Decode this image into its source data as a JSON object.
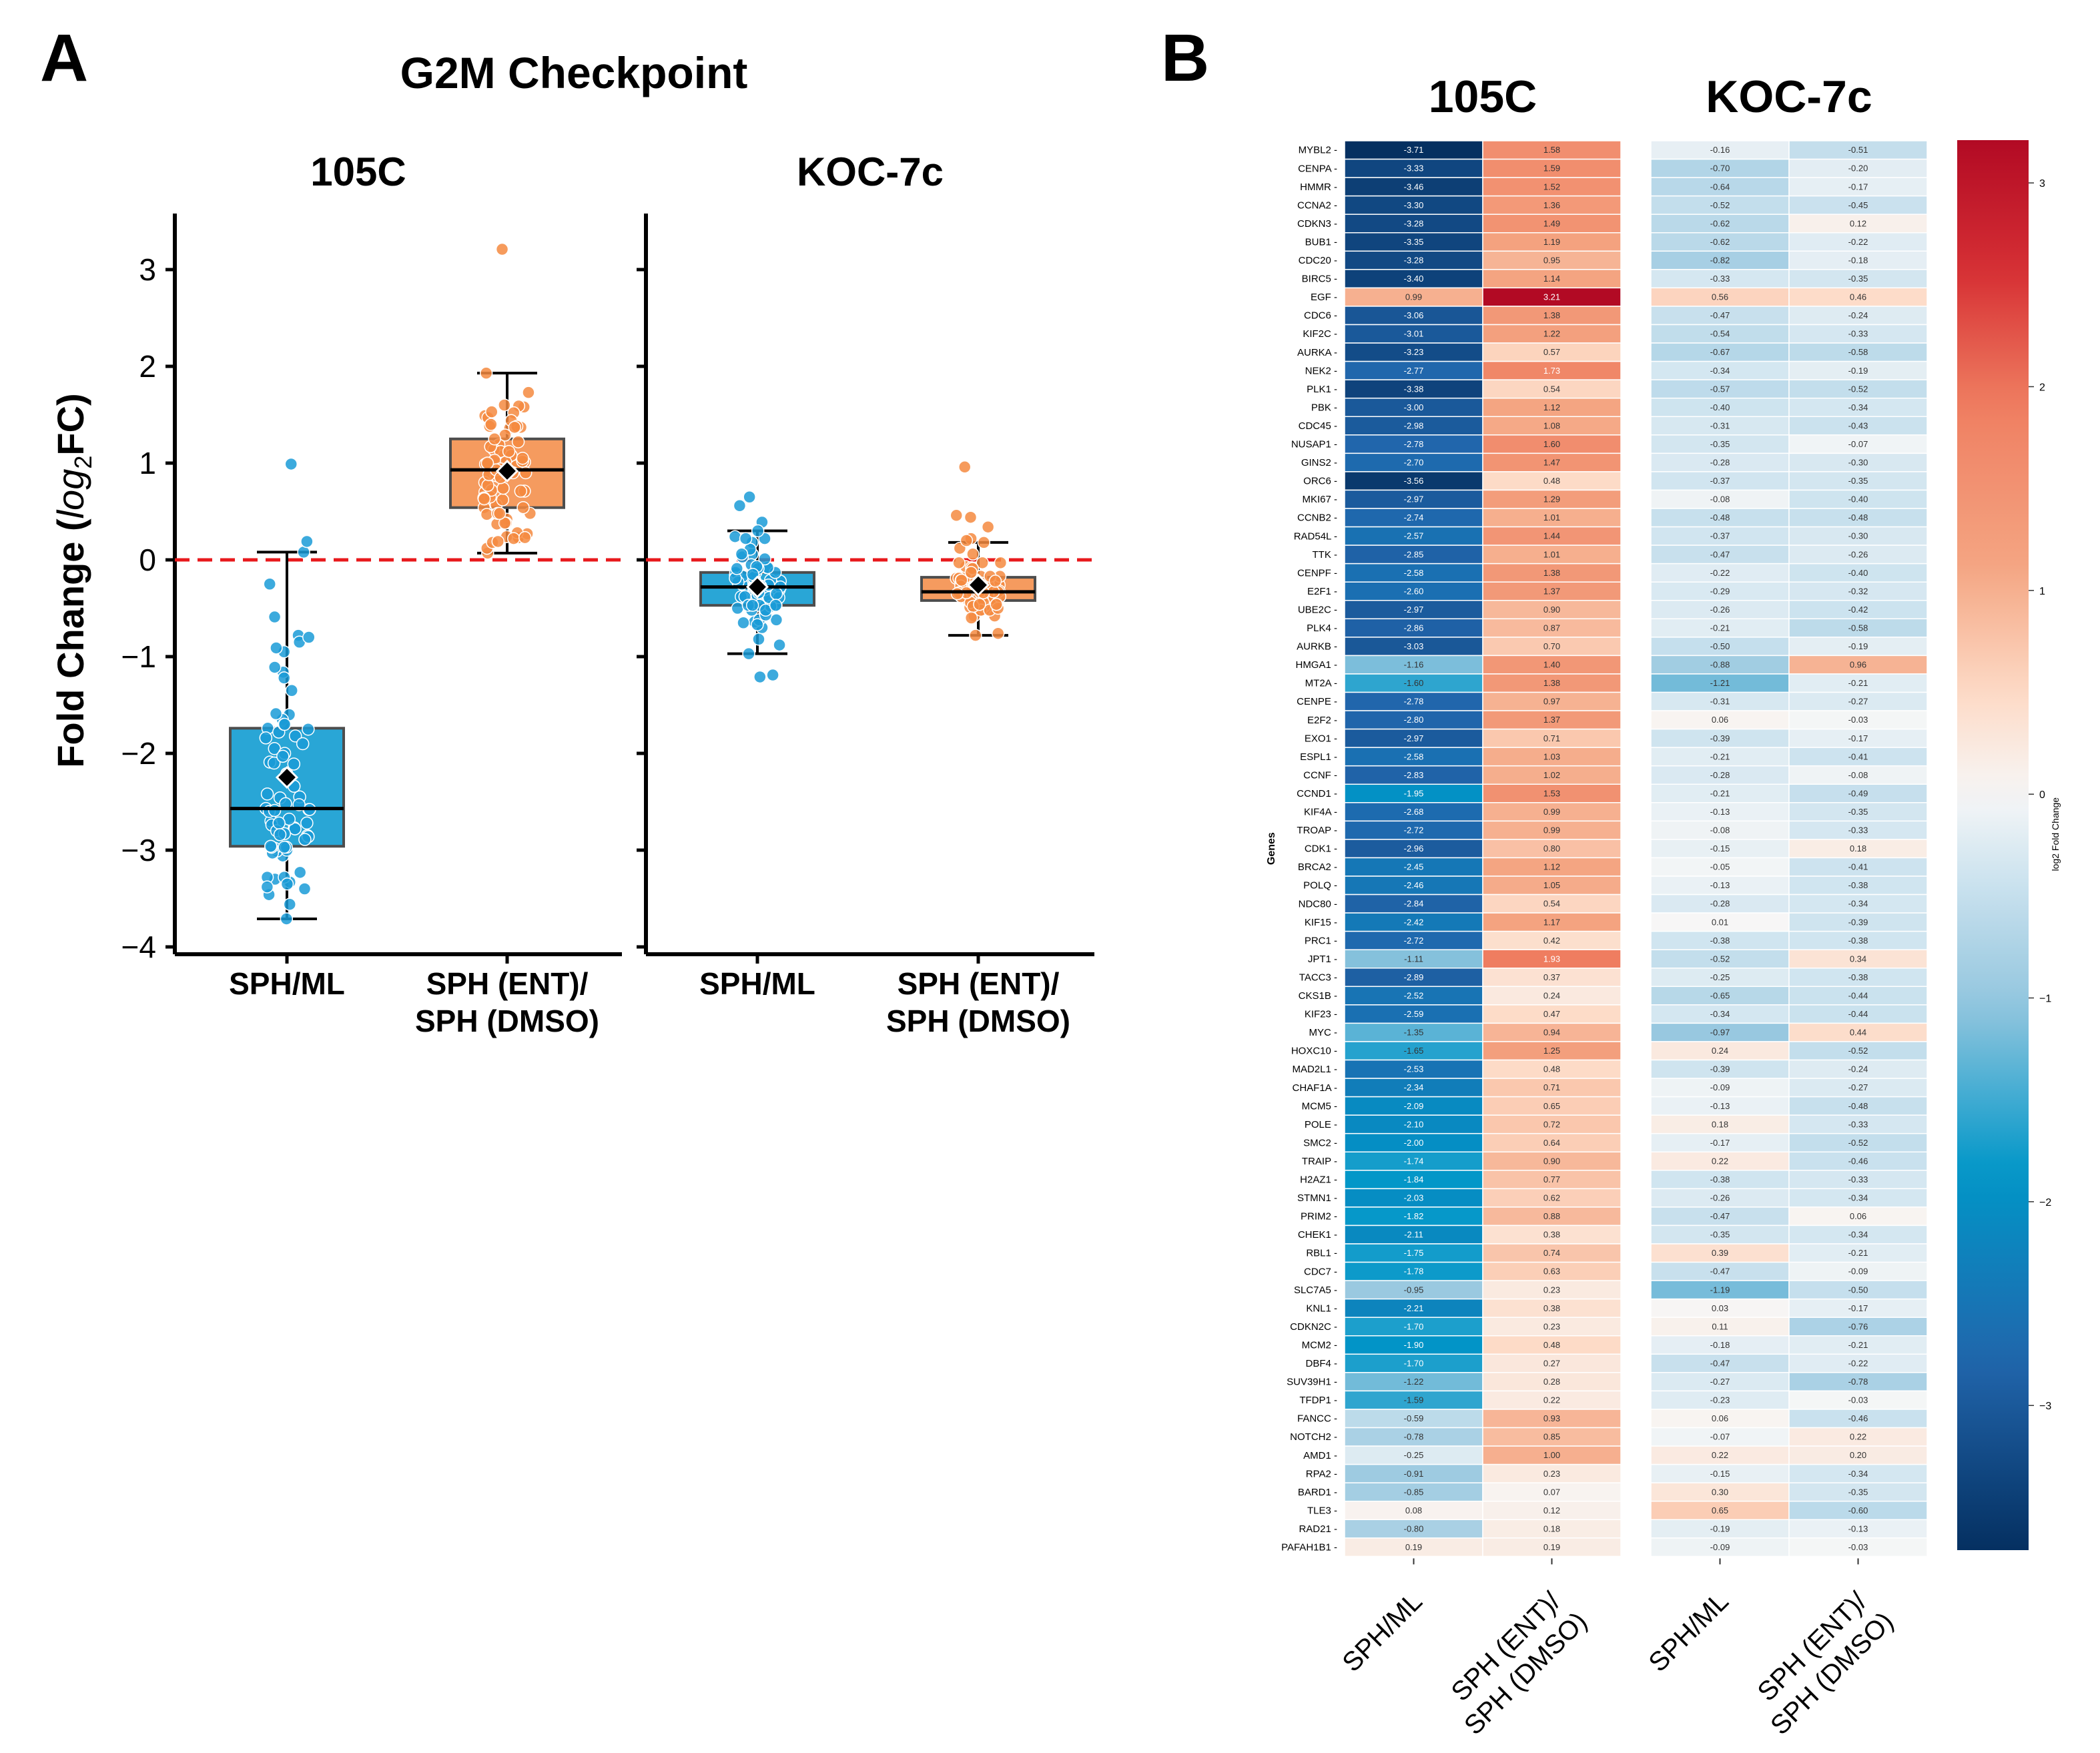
{
  "panel_a_letter": "A",
  "panel_b_letter": "B",
  "chart_data": [
    {
      "type": "box",
      "title": "G2M Checkpoint",
      "ylabel_main": "Fold Change (",
      "ylabel_italic": "log",
      "ylabel_sub": "2",
      "ylabel_tail": "FC)",
      "ylim": [
        -4,
        3.5
      ],
      "yticks": [
        3,
        2,
        1,
        0,
        -1,
        -2,
        -3,
        -4
      ],
      "ytick_labels": [
        "3",
        "2",
        "1",
        "0",
        "−1",
        "−2",
        "−3",
        "−4"
      ],
      "reference_line": 0,
      "reference_color": "#e8191c",
      "subplots": [
        {
          "title": "105C",
          "categories": [
            "SPH/ML",
            "SPH (ENT)/\nSPH (DMSO)"
          ],
          "series_keys": [
            "c105_sphml",
            "c105_ent"
          ]
        },
        {
          "title": "KOC-7c",
          "categories": [
            "SPH/ML",
            "SPH (ENT)/\nSPH (DMSO)"
          ],
          "series_keys": [
            "koc_sphml",
            "koc_ent"
          ]
        }
      ],
      "category_labels": [
        [
          "SPH/ML"
        ],
        [
          "SPH (ENT)/",
          "SPH (DMSO)"
        ]
      ],
      "colors": {
        "sphml": "#29a6d6",
        "ent": "#f59b5f",
        "sphml_point": "#1a9bd7",
        "ent_point": "#f58a3f"
      },
      "mean_marker": "diamond"
    },
    {
      "type": "heatmap",
      "groups": [
        "105C",
        "KOC-7c"
      ],
      "columns": [
        "SPH/ML",
        "SPH (ENT)/\nSPH (DMSO)",
        "SPH/ML",
        "SPH (ENT)/\nSPH (DMSO)"
      ],
      "column_labels": [
        [
          "SPH/ML"
        ],
        [
          "SPH (ENT)/",
          "SPH (DMSO)"
        ]
      ],
      "ylabel": "Genes",
      "colorbar_label": "log2 Fold Change",
      "colorbar_range": [
        -3.71,
        3.21
      ],
      "colorbar_ticks": [
        3,
        2,
        1,
        0,
        -1,
        -2,
        -3
      ],
      "colorbar_tick_labels": [
        "3",
        "2",
        "1",
        "0",
        "−1",
        "−2",
        "−3"
      ],
      "colormap": "RdBu_r",
      "genes": [
        "MYBL2",
        "CENPA",
        "HMMR",
        "CCNA2",
        "CDKN3",
        "BUB1",
        "CDC20",
        "BIRC5",
        "EGF",
        "CDC6",
        "KIF2C",
        "AURKA",
        "NEK2",
        "PLK1",
        "PBK",
        "CDC45",
        "NUSAP1",
        "GINS2",
        "ORC6",
        "MKI67",
        "CCNB2",
        "RAD54L",
        "TTK",
        "CENPF",
        "E2F1",
        "UBE2C",
        "PLK4",
        "AURKB",
        "HMGA1",
        "MT2A",
        "CENPE",
        "E2F2",
        "EXO1",
        "ESPL1",
        "CCNF",
        "CCND1",
        "KIF4A",
        "TROAP",
        "CDK1",
        "BRCA2",
        "POLQ",
        "NDC80",
        "KIF15",
        "PRC1",
        "JPT1",
        "TACC3",
        "CKS1B",
        "KIF23",
        "MYC",
        "HOXC10",
        "MAD2L1",
        "CHAF1A",
        "MCM5",
        "POLE",
        "SMC2",
        "TRAIP",
        "H2AZ1",
        "STMN1",
        "PRIM2",
        "CHEK1",
        "RBL1",
        "CDC7",
        "SLC7A5",
        "KNL1",
        "CDKN2C",
        "MCM2",
        "DBF4",
        "SUV39H1",
        "TFDP1",
        "FANCC",
        "NOTCH2",
        "AMD1",
        "RPA2",
        "BARD1",
        "TLE3",
        "RAD21",
        "PAFAH1B1"
      ],
      "series": {
        "c105_sphml": [
          -3.71,
          -3.33,
          -3.46,
          -3.3,
          -3.28,
          -3.35,
          -3.28,
          -3.4,
          0.99,
          -3.06,
          -3.01,
          -3.23,
          -2.77,
          -3.38,
          -3.0,
          -2.98,
          -2.78,
          -2.7,
          -3.56,
          -2.97,
          -2.74,
          -2.57,
          -2.85,
          -2.58,
          -2.6,
          -2.97,
          -2.86,
          -3.03,
          -1.16,
          -1.6,
          -2.78,
          -2.8,
          -2.97,
          -2.58,
          -2.83,
          -1.95,
          -2.68,
          -2.72,
          -2.96,
          -2.45,
          -2.46,
          -2.84,
          -2.42,
          -2.72,
          -1.11,
          -2.89,
          -2.52,
          -2.59,
          -1.35,
          -1.65,
          -2.53,
          -2.34,
          -2.09,
          -2.1,
          -2.0,
          -1.74,
          -1.84,
          -2.03,
          -1.82,
          -2.11,
          -1.75,
          -1.78,
          -0.95,
          -2.21,
          -1.7,
          -1.9,
          -1.7,
          -1.22,
          -1.59,
          -0.59,
          -0.78,
          -0.25,
          -0.91,
          -0.85,
          0.08,
          -0.8,
          0.19
        ],
        "c105_ent": [
          1.58,
          1.59,
          1.52,
          1.36,
          1.49,
          1.19,
          0.95,
          1.14,
          3.21,
          1.38,
          1.22,
          0.57,
          1.73,
          0.54,
          1.12,
          1.08,
          1.6,
          1.47,
          0.48,
          1.29,
          1.01,
          1.44,
          1.01,
          1.38,
          1.37,
          0.9,
          0.87,
          0.7,
          1.4,
          1.38,
          0.97,
          1.37,
          0.71,
          1.03,
          1.02,
          1.53,
          0.99,
          0.99,
          0.8,
          1.12,
          1.05,
          0.54,
          1.17,
          0.42,
          1.93,
          0.37,
          0.24,
          0.47,
          0.94,
          1.25,
          0.48,
          0.71,
          0.65,
          0.72,
          0.64,
          0.9,
          0.77,
          0.62,
          0.88,
          0.38,
          0.74,
          0.63,
          0.23,
          0.38,
          0.23,
          0.48,
          0.27,
          0.28,
          0.22,
          0.93,
          0.85,
          1.0,
          0.23,
          0.07,
          0.12,
          0.18,
          0.19
        ],
        "koc_sphml": [
          -0.16,
          -0.7,
          -0.64,
          -0.52,
          -0.62,
          -0.62,
          -0.82,
          -0.33,
          0.56,
          -0.47,
          -0.54,
          -0.67,
          -0.34,
          -0.57,
          -0.4,
          -0.31,
          -0.35,
          -0.28,
          -0.37,
          -0.08,
          -0.48,
          -0.37,
          -0.47,
          -0.22,
          -0.29,
          -0.26,
          -0.21,
          -0.5,
          -0.88,
          -1.21,
          -0.31,
          0.06,
          -0.39,
          -0.21,
          -0.28,
          -0.21,
          -0.13,
          -0.08,
          -0.15,
          -0.05,
          -0.13,
          -0.28,
          0.01,
          -0.38,
          -0.52,
          -0.25,
          -0.65,
          -0.34,
          -0.97,
          0.24,
          -0.39,
          -0.09,
          -0.13,
          0.18,
          -0.17,
          0.22,
          -0.38,
          -0.26,
          -0.47,
          -0.35,
          0.39,
          -0.47,
          -1.19,
          0.03,
          0.11,
          -0.18,
          -0.47,
          -0.27,
          -0.23,
          0.06,
          -0.07,
          0.22,
          -0.15,
          0.3,
          0.65,
          -0.19,
          -0.09
        ],
        "koc_ent": [
          -0.51,
          -0.2,
          -0.17,
          -0.45,
          0.12,
          -0.22,
          -0.18,
          -0.35,
          0.46,
          -0.24,
          -0.33,
          -0.58,
          -0.19,
          -0.52,
          -0.34,
          -0.43,
          -0.07,
          -0.3,
          -0.35,
          -0.4,
          -0.48,
          -0.3,
          -0.26,
          -0.4,
          -0.32,
          -0.42,
          -0.58,
          -0.19,
          0.96,
          -0.21,
          -0.27,
          -0.03,
          -0.17,
          -0.41,
          -0.08,
          -0.49,
          -0.35,
          -0.33,
          0.18,
          -0.41,
          -0.38,
          -0.34,
          -0.39,
          -0.38,
          0.34,
          -0.38,
          -0.44,
          -0.44,
          0.44,
          -0.52,
          -0.24,
          -0.27,
          -0.48,
          -0.33,
          -0.52,
          -0.46,
          -0.33,
          -0.34,
          0.06,
          -0.34,
          -0.21,
          -0.09,
          -0.5,
          -0.17,
          -0.76,
          -0.21,
          -0.22,
          -0.78,
          -0.03,
          -0.46,
          0.22,
          0.2,
          -0.34,
          -0.35,
          -0.6,
          -0.13,
          -0.03
        ]
      }
    }
  ]
}
